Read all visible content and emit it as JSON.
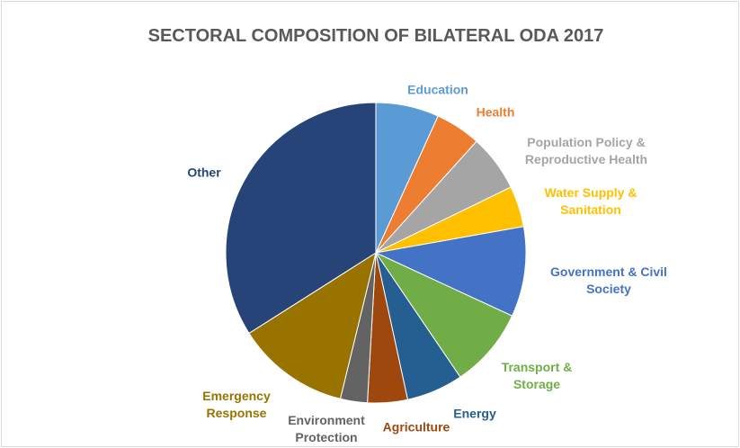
{
  "chart_data": {
    "type": "pie",
    "title": "SECTORAL COMPOSITION OF BILATERAL ODA 2017",
    "categories": [
      "Education",
      "Health",
      "Population Policy & Reproductive Health",
      "Water Supply & Sanitation",
      "Government & Civil Society",
      "Transport & Storage",
      "Energy",
      "Agriculture",
      "Environment Protection",
      "Emergency Response",
      "Other"
    ],
    "values": [
      6.8,
      4.9,
      6.1,
      4.4,
      9.7,
      8.6,
      6.1,
      4.3,
      2.9,
      12.2,
      34.0
    ],
    "colors": [
      "#5b9bd5",
      "#ed7d31",
      "#a5a5a5",
      "#ffc000",
      "#4472c4",
      "#70ad47",
      "#255e91",
      "#9e480e",
      "#636363",
      "#997300",
      "#264478"
    ]
  }
}
